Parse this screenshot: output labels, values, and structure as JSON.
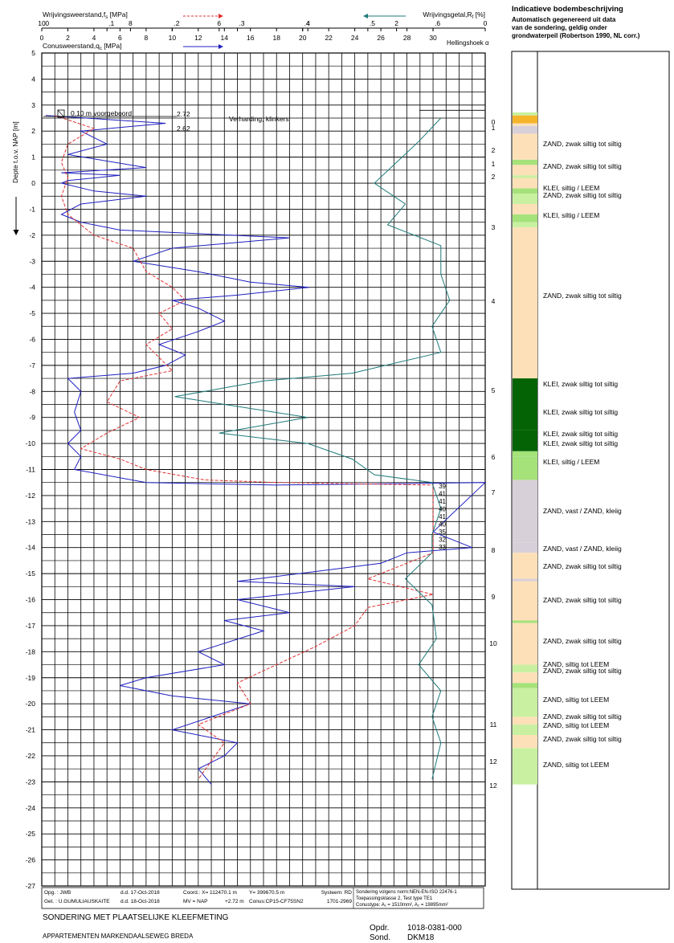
{
  "header": {
    "fs_label": "Wrijvingsweerstand,f",
    "fs_sub": "s",
    "fs_unit": " [MPa]",
    "rf_label": "Wrijvingsgetal,R",
    "rf_sub": "f",
    "rf_unit": " [%]",
    "qc_label": "Conusweerstand,q",
    "qc_sub": "c",
    "qc_unit": " [MPa]",
    "incl_label": "Hellingshoek",
    "incl_symbol": "α",
    "fs_ticks": [
      ".0",
      ".1",
      ".2",
      ".3",
      ".4",
      ".5",
      ".6"
    ],
    "rf_ticks": [
      "10",
      "8",
      "6",
      "4",
      "2",
      "0"
    ],
    "qc_ticks": [
      "0",
      "2",
      "4",
      "6",
      "8",
      "10",
      "12",
      "14",
      "16",
      "18",
      "20",
      "22",
      "24",
      "26",
      "28",
      "30"
    ]
  },
  "axis": {
    "ylabel": "Depte t.o.v. NAP [m]",
    "ticks": [
      "5",
      "4",
      "3",
      "2",
      "1",
      "0",
      "-1",
      "-2",
      "-3",
      "-4",
      "-5",
      "-6",
      "-7",
      "-8",
      "-9",
      "-10",
      "-11",
      "-12",
      "-13",
      "-14",
      "-15",
      "-16",
      "-17",
      "-18",
      "-19",
      "-20",
      "-21",
      "-22",
      "-23",
      "-24",
      "-25",
      "-26",
      "-27"
    ]
  },
  "annotations": {
    "predrill": "0.10  m voorgeboord",
    "surface_top": "2.72",
    "surface_bottom": "2.62",
    "pavement": "Verharding, klinkers",
    "inclination_values": [
      "39",
      "41",
      "41",
      "40",
      "41",
      "40",
      "35",
      "32",
      "33"
    ]
  },
  "legend": {
    "title": "Indicatieve bodembeschrijving",
    "subtitle_1": "Automatisch gegenereerd uit data",
    "subtitle_2": "van de sondering, geldig onder",
    "subtitle_3": "grondwaterpeil (Robertson 1990, NL corr.)",
    "zone_numbers": [
      "0",
      "1",
      "2",
      "1",
      "2",
      "3",
      "4",
      "5",
      "6",
      "7",
      "8",
      "9",
      "10",
      "11",
      "12",
      "12"
    ],
    "soil_labels": [
      "ZAND, zwak siltig tot siltig",
      "ZAND, zwak siltig tot siltig",
      "KLEI, siltig / LEEM",
      "ZAND, zwak siltig tot siltig",
      "KLEI, siltig / LEEM",
      "ZAND, zwak siltig tot siltig",
      "KLEI, zwak siltig tot siltig",
      "KLEI, zwak siltig tot siltig",
      "KLEI, zwak siltig tot siltig",
      "KLEI, zwak siltig tot siltig",
      "KLEI, siltig / LEEM",
      "ZAND, vast / ZAND, kleiig",
      "ZAND, vast / ZAND, kleiig",
      "ZAND, zwak siltig tot siltig",
      "ZAND, zwak siltig tot siltig",
      "ZAND, zwak siltig tot siltig",
      "ZAND, siltig tot LEEM",
      "ZAND, zwak siltig tot siltig",
      "ZAND, siltig tot LEEM",
      "ZAND, zwak siltig tot siltig",
      "ZAND, siltig tot LEEM",
      "ZAND, zwak siltig tot siltig",
      "ZAND, siltig tot LEEM"
    ],
    "colors": {
      "sand": "#fde0b8",
      "loam": "#c8f0a0",
      "clay_loam": "#a5e27a",
      "clay": "#046304",
      "dense": "#d8d0d8",
      "orange": "#f5b42a"
    }
  },
  "footer": {
    "opg_label": "Opg. : JWB",
    "get_label": "Get. : U.GUMULIAUSKAITE",
    "dd1": "d.d. 17-Oct-2018",
    "dd2": "d.d. 18-Oct-2018",
    "coord": "Coord.: X= 112470.1 m",
    "y": "Y= 399670.5 m",
    "mv": "MV = NAP",
    "mv_val": "+2.72 m",
    "conus": "Conus:CP15-CF75SN2",
    "systeem": "Systeem: RD",
    "code": "1701-2969",
    "norm1": "Sondering volgens norm:NEN-EN-ISO 22476-1",
    "norm2": "Toepassingsklasse 2,   Test type TE1",
    "norm3": "Conustype: A₁ = 1510mm²,   A₂ = 19895mm²",
    "title": "SONDERING MET PLAATSELIJKE KLEEFMETING",
    "project": "APPARTEMENTEN MARKENDAALSEWEG BREDA",
    "opdr_label": "Opdr.",
    "opdr_val": "1018-0381-000",
    "sond_label": "Sond.",
    "sond_val": "DKM18"
  },
  "chart_data": {
    "type": "line",
    "title": "",
    "y_unit": "m NAP",
    "ylim": [
      -27,
      5
    ],
    "x_axes": {
      "qc_MPa": [
        0,
        34
      ],
      "fs_MPa": [
        0,
        0.68
      ],
      "Rf_pct_reversed": [
        10,
        0
      ]
    },
    "series": [
      {
        "name": "Conusweerstand,qc",
        "axis": "qc_MPa",
        "color": "#2020c0",
        "style": "solid",
        "points": [
          [
            0.3,
            2.6
          ],
          [
            9.5,
            2.3
          ],
          [
            3,
            2
          ],
          [
            5,
            1.5
          ],
          [
            2,
            1.1
          ],
          [
            8,
            0.6
          ],
          [
            1.5,
            0.4
          ],
          [
            6,
            0.3
          ],
          [
            2,
            0.1
          ],
          [
            1.5,
            0
          ],
          [
            4,
            -0.3
          ],
          [
            8,
            -0.5
          ],
          [
            3,
            -0.8
          ],
          [
            1.5,
            -1.2
          ],
          [
            3,
            -1.5
          ],
          [
            6,
            -1.8
          ],
          [
            19,
            -2.1
          ],
          [
            10,
            -2.5
          ],
          [
            7,
            -3
          ],
          [
            12,
            -3.4
          ],
          [
            16,
            -3.8
          ],
          [
            20.5,
            -4
          ],
          [
            15,
            -4.3
          ],
          [
            10,
            -4.5
          ],
          [
            12,
            -4.8
          ],
          [
            14,
            -5.3
          ],
          [
            12,
            -5.7
          ],
          [
            9,
            -6.2
          ],
          [
            11,
            -6.6
          ],
          [
            9.5,
            -7
          ],
          [
            7,
            -7.3
          ],
          [
            2,
            -7.5
          ],
          [
            3,
            -8
          ],
          [
            2.5,
            -8.8
          ],
          [
            3,
            -9.5
          ],
          [
            2,
            -10
          ],
          [
            3,
            -10.5
          ],
          [
            2.5,
            -11
          ],
          [
            8,
            -11.5
          ],
          [
            18,
            -11.6
          ],
          [
            34,
            -11.5
          ],
          [
            30,
            -13.4
          ],
          [
            33,
            -14
          ],
          [
            28,
            -14.2
          ],
          [
            26,
            -14.6
          ],
          [
            15,
            -15.3
          ],
          [
            24,
            -15.5
          ],
          [
            15,
            -16
          ],
          [
            19,
            -16.5
          ],
          [
            14,
            -16.8
          ],
          [
            17,
            -17.2
          ],
          [
            12,
            -18
          ],
          [
            14,
            -18.5
          ],
          [
            8,
            -19
          ],
          [
            6,
            -19.3
          ],
          [
            10,
            -19.7
          ],
          [
            16,
            -20
          ],
          [
            13,
            -20.5
          ],
          [
            10,
            -21
          ],
          [
            15,
            -21.5
          ],
          [
            14,
            -22
          ],
          [
            12,
            -22.5
          ],
          [
            13,
            -23.1
          ]
        ]
      },
      {
        "name": "Wrijvingsweerstand,fs",
        "axis": "fs_MPa",
        "color": "#e03030",
        "style": "dashed",
        "points": [
          [
            0.02,
            2.6
          ],
          [
            0.08,
            2.1
          ],
          [
            0.04,
            1.5
          ],
          [
            0.03,
            0.8
          ],
          [
            0.04,
            0.2
          ],
          [
            0.03,
            -0.5
          ],
          [
            0.04,
            -1.2
          ],
          [
            0.08,
            -2
          ],
          [
            0.14,
            -2.5
          ],
          [
            0.16,
            -3.4
          ],
          [
            0.2,
            -4
          ],
          [
            0.22,
            -4.5
          ],
          [
            0.18,
            -5
          ],
          [
            0.2,
            -5.6
          ],
          [
            0.16,
            -6.2
          ],
          [
            0.2,
            -7.2
          ],
          [
            0.12,
            -7.6
          ],
          [
            0.1,
            -8.4
          ],
          [
            0.15,
            -9
          ],
          [
            0.1,
            -9.6
          ],
          [
            0.06,
            -10.2
          ],
          [
            0.12,
            -10.6
          ],
          [
            0.16,
            -11
          ],
          [
            0.25,
            -11.4
          ],
          [
            0.36,
            -11.5
          ],
          [
            0.6,
            -11.6
          ],
          [
            0.6,
            -14.2
          ],
          [
            0.5,
            -15.2
          ],
          [
            0.6,
            -15.8
          ],
          [
            0.5,
            -16.3
          ],
          [
            0.48,
            -17
          ],
          [
            0.42,
            -17.8
          ],
          [
            0.36,
            -18.5
          ],
          [
            0.3,
            -19.2
          ],
          [
            0.32,
            -20
          ],
          [
            0.24,
            -20.8
          ],
          [
            0.28,
            -21.5
          ],
          [
            0.26,
            -22.2
          ],
          [
            0.24,
            -22.9
          ]
        ]
      },
      {
        "name": "Wrijvingsgetal,Rf",
        "axis": "Rf_pct_reversed",
        "color": "#1f7a7a",
        "style": "solid",
        "points": [
          [
            1,
            2.5
          ],
          [
            1.5,
            1.6
          ],
          [
            2,
            0.8
          ],
          [
            2.5,
            0
          ],
          [
            1.8,
            -0.8
          ],
          [
            2.2,
            -1.6
          ],
          [
            1,
            -2.4
          ],
          [
            1,
            -3.5
          ],
          [
            0.8,
            -4.5
          ],
          [
            1.2,
            -5.5
          ],
          [
            1,
            -6.5
          ],
          [
            3,
            -7.3
          ],
          [
            5,
            -7.6
          ],
          [
            7,
            -8.2
          ],
          [
            4,
            -9
          ],
          [
            6,
            -9.6
          ],
          [
            4,
            -10
          ],
          [
            3,
            -10.6
          ],
          [
            2.5,
            -11.2
          ],
          [
            1.2,
            -11.5
          ],
          [
            1,
            -12.5
          ],
          [
            1.2,
            -13.5
          ],
          [
            1.2,
            -14.2
          ],
          [
            1.8,
            -15.2
          ],
          [
            1.2,
            -16.2
          ],
          [
            1.1,
            -17.5
          ],
          [
            1.5,
            -18.5
          ],
          [
            1,
            -19.5
          ],
          [
            1.2,
            -20.5
          ],
          [
            1,
            -21.5
          ],
          [
            1.2,
            -22.9
          ]
        ]
      }
    ]
  }
}
